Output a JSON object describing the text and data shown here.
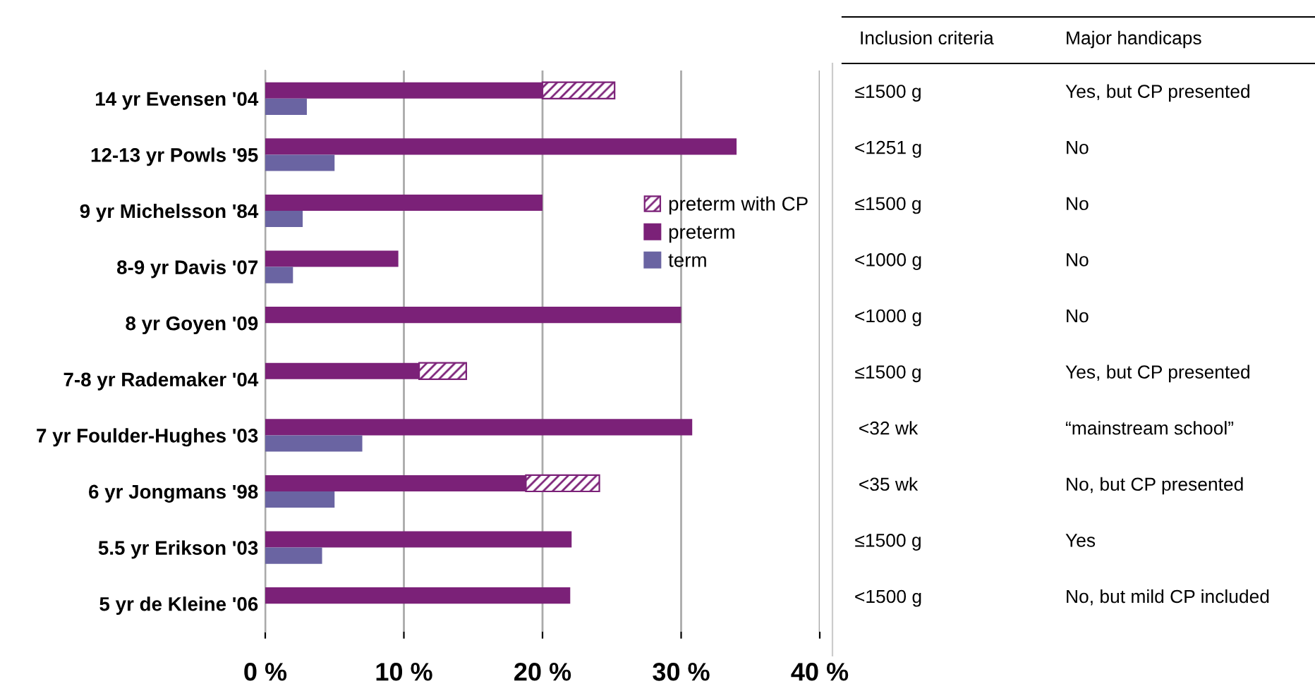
{
  "chart_data": {
    "type": "bar",
    "orientation": "horizontal",
    "categories": [
      "14 yr Evensen '04",
      "12-13 yr Powls '95",
      "9 yr Michelsson '84",
      "8-9 yr Davis '07",
      "8 yr Goyen '09",
      "7-8 yr Rademaker '04",
      "7 yr Foulder-Hughes '03",
      "6 yr Jongmans '98",
      "5.5 yr Erikson '03",
      "5 yr de Kleine '06"
    ],
    "series": [
      {
        "name": "preterm",
        "color": "#7b2178",
        "values": [
          20,
          34,
          20,
          9.6,
          30,
          11.1,
          30.8,
          18.8,
          22.1,
          22
        ]
      },
      {
        "name": "preterm with CP",
        "color": "#7b2178",
        "base": [
          20,
          null,
          null,
          null,
          null,
          11.1,
          null,
          18.8,
          null,
          null
        ],
        "values": [
          5.2,
          null,
          null,
          null,
          null,
          3.4,
          null,
          5.3,
          null,
          null
        ]
      },
      {
        "name": "term",
        "color": "#6a64a2",
        "values": [
          3.0,
          5.0,
          2.7,
          2.0,
          null,
          null,
          7.0,
          5.0,
          4.1,
          null
        ]
      }
    ],
    "xlim": [
      0,
      40
    ],
    "xticks": [
      {
        "value": 0,
        "label": "0 %"
      },
      {
        "value": 10,
        "label": "10 %"
      },
      {
        "value": 20,
        "label": "20 %"
      },
      {
        "value": 30,
        "label": "30 %"
      },
      {
        "value": 40,
        "label": "40 %"
      }
    ],
    "grid": "x",
    "legend": "right",
    "annotations": [
      "Inclusion criteria",
      "Major handicaps",
      "≤1500 g",
      "Yes, but CP presented",
      "<1251 g",
      "No",
      "≤1500 g",
      "No",
      "<1000 g",
      "No",
      "<1000 g",
      "No",
      "≤1500 g",
      "Yes, but CP presented",
      "<32 wk",
      "“mainstream school”",
      "<35 wk",
      "No, but CP presented",
      "≤1500 g",
      "Yes",
      "<1500 g",
      "No, but mild CP included"
    ]
  }
}
